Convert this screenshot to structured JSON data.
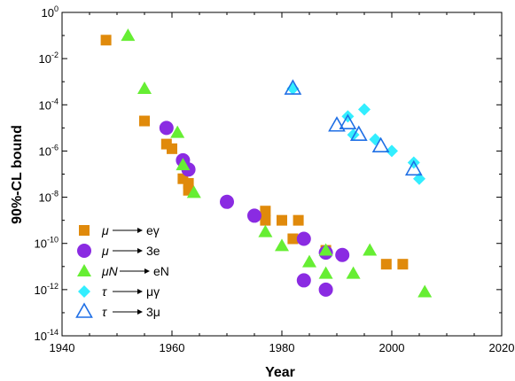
{
  "chart_data": {
    "type": "scatter",
    "xlabel": "Year",
    "ylabel": "90%-CL bound",
    "xlim": [
      1940,
      2020
    ],
    "ylim_exponent": [
      -14,
      0
    ],
    "log_y": true,
    "grid": false,
    "legend_position": "bottom-left",
    "x_ticks": [
      "1940",
      "1960",
      "1980",
      "2000",
      "2020"
    ],
    "y_ticks": [
      {
        "base": "10",
        "exp": "-14",
        "value": -14
      },
      {
        "base": "10",
        "exp": "-12",
        "value": -12
      },
      {
        "base": "10",
        "exp": "-10",
        "value": -10
      },
      {
        "base": "10",
        "exp": "-8",
        "value": -8
      },
      {
        "base": "10",
        "exp": "-6",
        "value": -6
      },
      {
        "base": "10",
        "exp": "-4",
        "value": -4
      },
      {
        "base": "10",
        "exp": "-2",
        "value": -2
      },
      {
        "base": "10",
        "exp": "0",
        "value": 0
      }
    ],
    "series": [
      {
        "name": "μ → eγ",
        "label_parts": [
          "μ",
          "eγ"
        ],
        "marker": "square",
        "color": "#E08A0B",
        "points": [
          [
            1948,
            -1.2
          ],
          [
            1955,
            -4.7
          ],
          [
            1959,
            -5.7
          ],
          [
            1960,
            -5.9
          ],
          [
            1962,
            -7.2
          ],
          [
            1963,
            -7.4
          ],
          [
            1963,
            -7.7
          ],
          [
            1977,
            -8.6
          ],
          [
            1977,
            -9.0
          ],
          [
            1980,
            -9.0
          ],
          [
            1982,
            -9.8
          ],
          [
            1983,
            -9.0
          ],
          [
            1988,
            -10.3
          ],
          [
            1999,
            -10.9
          ],
          [
            2002,
            -10.9
          ]
        ]
      },
      {
        "name": "μ → 3e",
        "label_parts": [
          "μ",
          "3e"
        ],
        "marker": "circle",
        "color": "#8A2BE2",
        "points": [
          [
            1959,
            -5.0
          ],
          [
            1962,
            -6.4
          ],
          [
            1963,
            -6.8
          ],
          [
            1970,
            -8.2
          ],
          [
            1975,
            -8.8
          ],
          [
            1984,
            -9.8
          ],
          [
            1984,
            -11.6
          ],
          [
            1988,
            -10.4
          ],
          [
            1988,
            -12.0
          ],
          [
            1991,
            -10.5
          ]
        ]
      },
      {
        "name": "μN → eN",
        "label_parts": [
          "μN",
          "eN"
        ],
        "marker": "triangle",
        "color": "#66EE33",
        "points": [
          [
            1952,
            -1.0
          ],
          [
            1955,
            -3.3
          ],
          [
            1961,
            -5.2
          ],
          [
            1962,
            -6.6
          ],
          [
            1964,
            -7.8
          ],
          [
            1977,
            -9.5
          ],
          [
            1980,
            -10.1
          ],
          [
            1985,
            -10.8
          ],
          [
            1988,
            -10.3
          ],
          [
            1988,
            -11.3
          ],
          [
            1993,
            -11.3
          ],
          [
            1996,
            -10.3
          ],
          [
            2006,
            -12.1
          ]
        ]
      },
      {
        "name": "τ → μγ",
        "label_parts": [
          "τ",
          "μγ"
        ],
        "marker": "diamond",
        "color": "#33EEFF",
        "points": [
          [
            1982,
            -3.3
          ],
          [
            1992,
            -4.5
          ],
          [
            1993,
            -5.3
          ],
          [
            1995,
            -4.2
          ],
          [
            1997,
            -5.5
          ],
          [
            2000,
            -6.0
          ],
          [
            2004,
            -6.5
          ],
          [
            2005,
            -7.2
          ]
        ]
      },
      {
        "name": "τ → 3μ",
        "label_parts": [
          "τ",
          "3μ"
        ],
        "marker": "triangle-open",
        "color": "#1F6FE5",
        "points": [
          [
            1982,
            -3.3
          ],
          [
            1990,
            -4.9
          ],
          [
            1992,
            -4.8
          ],
          [
            1994,
            -5.3
          ],
          [
            1998,
            -5.8
          ],
          [
            2004,
            -6.8
          ]
        ]
      }
    ]
  }
}
